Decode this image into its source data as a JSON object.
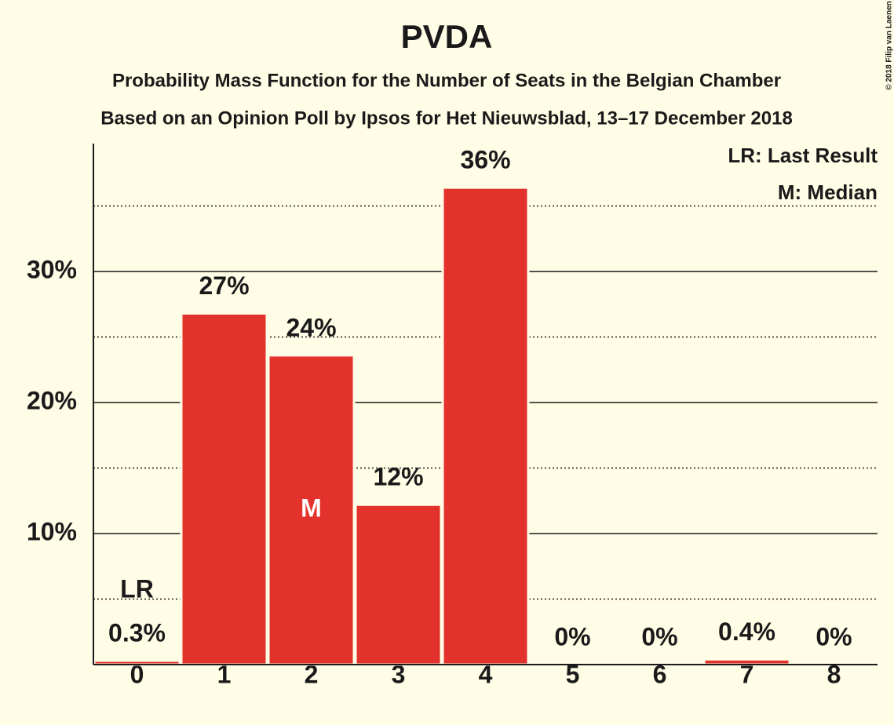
{
  "chart_data": {
    "type": "bar",
    "title": "PVDA",
    "subtitles": [
      "Probability Mass Function for the Number of Seats in the Belgian Chamber",
      "Based on an Opinion Poll by Ipsos for Het Nieuwsblad, 13–17 December 2018"
    ],
    "categories": [
      "0",
      "1",
      "2",
      "3",
      "4",
      "5",
      "6",
      "7",
      "8"
    ],
    "values": [
      0.3,
      26.8,
      23.6,
      12.2,
      36.4,
      0,
      0,
      0.4,
      0
    ],
    "value_labels": [
      "0.3%",
      "27%",
      "24%",
      "12%",
      "36%",
      "0%",
      "0%",
      "0.4%",
      "0%"
    ],
    "color": "#e3312b",
    "ylim": [
      0,
      40
    ],
    "yticks": [
      {
        "value": 10,
        "label": "10%"
      },
      {
        "value": 20,
        "label": "20%"
      },
      {
        "value": 30,
        "label": "30%"
      }
    ],
    "minor_yticks": [
      5,
      15,
      25,
      35
    ],
    "grid": true,
    "annotations": [
      {
        "label": "LR",
        "category": "0"
      },
      {
        "label": "M",
        "category": "2"
      }
    ],
    "legend": [
      "LR: Last Result",
      "M: Median"
    ],
    "credit": "© 2018 Filip van Laenen"
  }
}
